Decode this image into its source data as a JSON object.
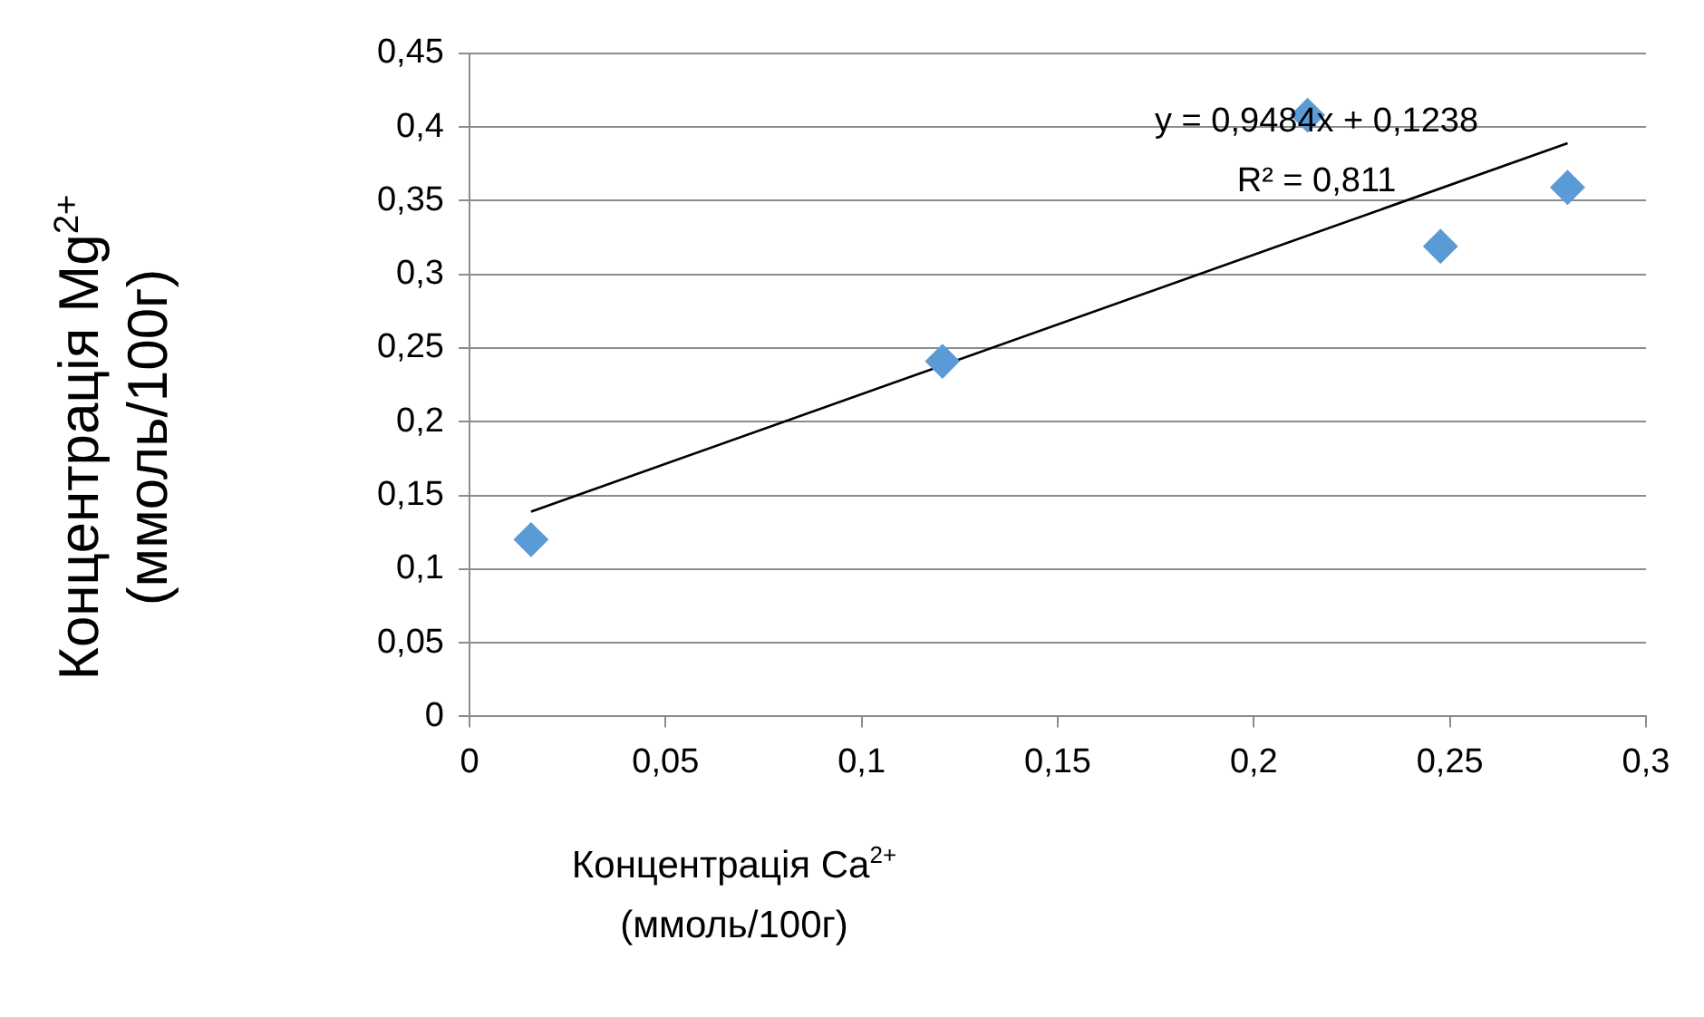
{
  "chart_data": {
    "type": "scatter",
    "xlabel": "Концентрація Ca$^{2+}$ (ммоль/100г)",
    "ylabel": "Концентрація Mg$^{2+}$ (ммоль/100г)",
    "xlim": [
      0,
      0.3
    ],
    "xticks": [
      0,
      {
        "value": 0.05,
        "label": "0,05"
      },
      {
        "value": 0.1,
        "label": "0,1"
      },
      {
        "value": 0.15,
        "label": "0,15"
      },
      {
        "value": 0.2,
        "label": "0,2"
      },
      {
        "value": 0.25,
        "label": "0,25"
      },
      {
        "value": 0.3,
        "label": "0,3"
      }
    ],
    "ylim": [
      0,
      0.45
    ],
    "yticks": [
      0,
      {
        "value": 0.05,
        "label": "0,05"
      },
      {
        "value": 0.1,
        "label": "0,1"
      },
      {
        "value": 0.15,
        "label": "0,15"
      },
      {
        "value": 0.2,
        "label": "0,2"
      },
      {
        "value": 0.25,
        "label": "0,25"
      },
      {
        "value": 0.3,
        "label": "0,3"
      },
      {
        "value": 0.35,
        "label": "0,35"
      },
      {
        "value": 0.4,
        "label": "0,4"
      },
      {
        "value": 0.45,
        "label": "0,45"
      }
    ],
    "grid": "y",
    "legend": false,
    "marker": "diamond",
    "series": [
      {
        "type": "scatter",
        "color": "#5b9bd5",
        "x": [
          0.0157,
          0.1206,
          0.2137,
          0.2476,
          0.28
        ],
        "values": [
          0.12,
          0.241,
          0.408,
          0.319,
          0.359
        ]
      },
      {
        "type": "line",
        "color": "#000000",
        "marker": "none",
        "x": [
          0.0157,
          0.28
        ],
        "values": [
          0.139,
          0.389
        ]
      }
    ],
    "annotations": [
      "y = 0,9484x + 0,1238",
      "R² = 0,811"
    ]
  }
}
